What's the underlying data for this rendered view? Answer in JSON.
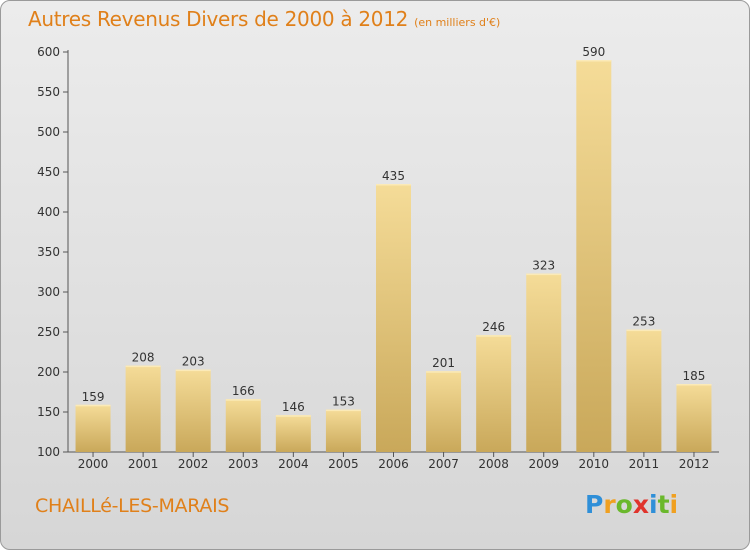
{
  "chart_data": {
    "type": "bar",
    "title": "Autres Revenus Divers de 2000 à 2012",
    "subtitle": "(en milliers d'€)",
    "categories": [
      "2000",
      "2001",
      "2002",
      "2003",
      "2004",
      "2005",
      "2006",
      "2007",
      "2008",
      "2009",
      "2010",
      "2011",
      "2012"
    ],
    "values": [
      159,
      208,
      203,
      166,
      146,
      153,
      435,
      201,
      246,
      323,
      590,
      253,
      185
    ],
    "xlabel": "",
    "ylabel": "",
    "ylim": [
      100,
      600
    ],
    "yticks": [
      100,
      150,
      200,
      250,
      300,
      350,
      400,
      450,
      500,
      550,
      600
    ],
    "grid": false,
    "bar_color": "#e8c97a"
  },
  "location": "CHAILLé-LES-MARAIS",
  "logo": {
    "text": "Proxiti",
    "letter_colors": [
      "#2f8fd8",
      "#f0a020",
      "#6ab82c",
      "#e0342c",
      "#2f8fd8",
      "#6ab82c",
      "#f0a020"
    ]
  },
  "colors": {
    "accent": "#e0801a"
  }
}
